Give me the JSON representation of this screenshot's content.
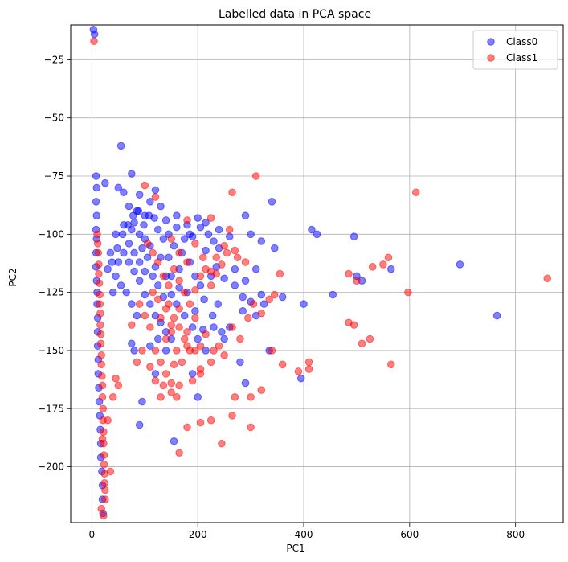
{
  "chart_data": {
    "type": "scatter",
    "title": "Labelled data in PCA space",
    "xlabel": "PC1",
    "ylabel": "PC2",
    "xlim": [
      -40,
      890
    ],
    "ylim": [
      -224,
      -10
    ],
    "xticks": [
      0,
      200,
      400,
      600,
      800
    ],
    "yticks": [
      -25,
      -50,
      -75,
      -100,
      -125,
      -150,
      -175,
      -200
    ],
    "grid": true,
    "legend": "top-right",
    "series": [
      {
        "name": "Class0",
        "color": "#0000ff",
        "alpha": 0.5,
        "points": [
          [
            3,
            -12
          ],
          [
            5,
            -14
          ],
          [
            8,
            -75
          ],
          [
            9,
            -80
          ],
          [
            8,
            -86
          ],
          [
            9,
            -92
          ],
          [
            8,
            -98
          ],
          [
            9,
            -102
          ],
          [
            8,
            -108
          ],
          [
            8,
            -114
          ],
          [
            9,
            -120
          ],
          [
            10,
            -125
          ],
          [
            10,
            -130
          ],
          [
            11,
            -136
          ],
          [
            11,
            -142
          ],
          [
            11,
            -148
          ],
          [
            12,
            -154
          ],
          [
            12,
            -160
          ],
          [
            13,
            -166
          ],
          [
            14,
            -172
          ],
          [
            15,
            -178
          ],
          [
            16,
            -184
          ],
          [
            17,
            -190
          ],
          [
            17,
            -196
          ],
          [
            19,
            -202
          ],
          [
            20,
            -208
          ],
          [
            20,
            -214
          ],
          [
            21,
            -220
          ],
          [
            55,
            -62
          ],
          [
            75,
            -74
          ],
          [
            50,
            -80
          ],
          [
            25,
            -78
          ],
          [
            60,
            -82
          ],
          [
            90,
            -83
          ],
          [
            120,
            -81
          ],
          [
            110,
            -86
          ],
          [
            130,
            -88
          ],
          [
            70,
            -88
          ],
          [
            85,
            -90
          ],
          [
            100,
            -92
          ],
          [
            140,
            -94
          ],
          [
            160,
            -97
          ],
          [
            180,
            -96
          ],
          [
            200,
            -93
          ],
          [
            215,
            -95
          ],
          [
            240,
            -98
          ],
          [
            260,
            -101
          ],
          [
            290,
            -92
          ],
          [
            340,
            -86
          ],
          [
            300,
            -100
          ],
          [
            320,
            -103
          ],
          [
            345,
            -106
          ],
          [
            415,
            -98
          ],
          [
            425,
            -100
          ],
          [
            495,
            -101
          ],
          [
            500,
            -118
          ],
          [
            510,
            -120
          ],
          [
            565,
            -115
          ],
          [
            455,
            -126
          ],
          [
            400,
            -130
          ],
          [
            360,
            -127
          ],
          [
            320,
            -126
          ],
          [
            300,
            -129
          ],
          [
            285,
            -133
          ],
          [
            260,
            -140
          ],
          [
            245,
            -142
          ],
          [
            230,
            -140
          ],
          [
            210,
            -141
          ],
          [
            195,
            -133
          ],
          [
            180,
            -125
          ],
          [
            165,
            -123
          ],
          [
            150,
            -126
          ],
          [
            140,
            -118
          ],
          [
            130,
            -110
          ],
          [
            120,
            -114
          ],
          [
            110,
            -105
          ],
          [
            100,
            -102
          ],
          [
            90,
            -100
          ],
          [
            80,
            -95
          ],
          [
            70,
            -104
          ],
          [
            60,
            -108
          ],
          [
            50,
            -112
          ],
          [
            45,
            -118
          ],
          [
            55,
            -122
          ],
          [
            65,
            -125
          ],
          [
            75,
            -130
          ],
          [
            85,
            -135
          ],
          [
            40,
            -125
          ],
          [
            30,
            -115
          ],
          [
            35,
            -108
          ],
          [
            45,
            -100
          ],
          [
            60,
            -96
          ],
          [
            75,
            -98
          ],
          [
            95,
            -106
          ],
          [
            105,
            -110
          ],
          [
            115,
            -118
          ],
          [
            125,
            -122
          ],
          [
            135,
            -127
          ],
          [
            145,
            -110
          ],
          [
            155,
            -105
          ],
          [
            170,
            -108
          ],
          [
            185,
            -112
          ],
          [
            195,
            -118
          ],
          [
            205,
            -122
          ],
          [
            225,
            -118
          ],
          [
            235,
            -114
          ],
          [
            250,
            -119
          ],
          [
            270,
            -122
          ],
          [
            290,
            -120
          ],
          [
            310,
            -115
          ],
          [
            215,
            -107
          ],
          [
            190,
            -101
          ],
          [
            175,
            -102
          ],
          [
            165,
            -115
          ],
          [
            150,
            -118
          ],
          [
            160,
            -130
          ],
          [
            175,
            -135
          ],
          [
            190,
            -140
          ],
          [
            200,
            -145
          ],
          [
            215,
            -150
          ],
          [
            190,
            -160
          ],
          [
            200,
            -170
          ],
          [
            155,
            -189
          ],
          [
            95,
            -172
          ],
          [
            90,
            -182
          ],
          [
            75,
            -147
          ],
          [
            80,
            -150
          ],
          [
            110,
            -148
          ],
          [
            125,
            -145
          ],
          [
            140,
            -150
          ],
          [
            120,
            -160
          ],
          [
            280,
            -155
          ],
          [
            290,
            -164
          ],
          [
            325,
            -130
          ],
          [
            285,
            -127
          ],
          [
            270,
            -115
          ],
          [
            240,
            -106
          ],
          [
            230,
            -103
          ],
          [
            220,
            -100
          ],
          [
            205,
            -97
          ],
          [
            185,
            -100
          ],
          [
            160,
            -92
          ],
          [
            145,
            -100
          ],
          [
            135,
            -102
          ],
          [
            125,
            -98
          ],
          [
            118,
            -93
          ],
          [
            108,
            -92
          ],
          [
            98,
            -96
          ],
          [
            88,
            -90
          ],
          [
            78,
            -92
          ],
          [
            68,
            -96
          ],
          [
            58,
            -100
          ],
          [
            48,
            -106
          ],
          [
            38,
            -112
          ],
          [
            70,
            -112
          ],
          [
            80,
            -116
          ],
          [
            90,
            -120
          ],
          [
            100,
            -126
          ],
          [
            110,
            -130
          ],
          [
            120,
            -135
          ],
          [
            130,
            -138
          ],
          [
            140,
            -142
          ],
          [
            150,
            -145
          ],
          [
            80,
            -108
          ],
          [
            90,
            -112
          ],
          [
            100,
            -116
          ],
          [
            765,
            -135
          ],
          [
            695,
            -113
          ],
          [
            395,
            -162
          ],
          [
            335,
            -150
          ],
          [
            310,
            -135
          ],
          [
            250,
            -145
          ],
          [
            238,
            -130
          ],
          [
            228,
            -135
          ],
          [
            212,
            -128
          ]
        ]
      },
      {
        "name": "Class1",
        "color": "#ff0000",
        "alpha": 0.5,
        "points": [
          [
            4,
            -17
          ],
          [
            10,
            -100
          ],
          [
            11,
            -104
          ],
          [
            12,
            -108
          ],
          [
            13,
            -113
          ],
          [
            13,
            -117
          ],
          [
            14,
            -121
          ],
          [
            15,
            -126
          ],
          [
            15,
            -130
          ],
          [
            16,
            -134
          ],
          [
            16,
            -139
          ],
          [
            17,
            -143
          ],
          [
            17,
            -147
          ],
          [
            18,
            -152
          ],
          [
            18,
            -156
          ],
          [
            19,
            -161
          ],
          [
            20,
            -165
          ],
          [
            20,
            -170
          ],
          [
            21,
            -175
          ],
          [
            21,
            -180
          ],
          [
            22,
            -185
          ],
          [
            22,
            -190
          ],
          [
            23,
            -195
          ],
          [
            23,
            -199
          ],
          [
            24,
            -203
          ],
          [
            24,
            -207
          ],
          [
            25,
            -210
          ],
          [
            25,
            -214
          ],
          [
            18,
            -218
          ],
          [
            22,
            -221
          ],
          [
            35,
            -202
          ],
          [
            40,
            -170
          ],
          [
            45,
            -162
          ],
          [
            50,
            -165
          ],
          [
            30,
            -180
          ],
          [
            20,
            -188
          ],
          [
            100,
            -79
          ],
          [
            120,
            -84
          ],
          [
            225,
            -93
          ],
          [
            265,
            -82
          ],
          [
            310,
            -75
          ],
          [
            612,
            -82
          ],
          [
            860,
            -119
          ],
          [
            597,
            -125
          ],
          [
            560,
            -110
          ],
          [
            550,
            -113
          ],
          [
            530,
            -114
          ],
          [
            500,
            -120
          ],
          [
            485,
            -117
          ],
          [
            485,
            -138
          ],
          [
            495,
            -139
          ],
          [
            510,
            -147
          ],
          [
            525,
            -145
          ],
          [
            565,
            -156
          ],
          [
            410,
            -155
          ],
          [
            410,
            -158
          ],
          [
            390,
            -159
          ],
          [
            360,
            -156
          ],
          [
            345,
            -126
          ],
          [
            340,
            -150
          ],
          [
            320,
            -167
          ],
          [
            300,
            -170
          ],
          [
            300,
            -183
          ],
          [
            270,
            -170
          ],
          [
            265,
            -178
          ],
          [
            245,
            -190
          ],
          [
            225,
            -180
          ],
          [
            205,
            -181
          ],
          [
            180,
            -183
          ],
          [
            165,
            -194
          ],
          [
            150,
            -168
          ],
          [
            135,
            -165
          ],
          [
            130,
            -170
          ],
          [
            120,
            -163
          ],
          [
            110,
            -157
          ],
          [
            95,
            -150
          ],
          [
            85,
            -155
          ],
          [
            75,
            -139
          ],
          [
            90,
            -130
          ],
          [
            100,
            -135
          ],
          [
            110,
            -140
          ],
          [
            125,
            -128
          ],
          [
            140,
            -132
          ],
          [
            155,
            -136
          ],
          [
            165,
            -140
          ],
          [
            175,
            -145
          ],
          [
            185,
            -150
          ],
          [
            195,
            -150
          ],
          [
            205,
            -148
          ],
          [
            215,
            -143
          ],
          [
            225,
            -155
          ],
          [
            240,
            -148
          ],
          [
            250,
            -152
          ],
          [
            265,
            -140
          ],
          [
            280,
            -145
          ],
          [
            295,
            -136
          ],
          [
            305,
            -130
          ],
          [
            320,
            -134
          ],
          [
            335,
            -128
          ],
          [
            355,
            -117
          ],
          [
            290,
            -112
          ],
          [
            275,
            -110
          ],
          [
            255,
            -108
          ],
          [
            245,
            -113
          ],
          [
            235,
            -117
          ],
          [
            225,
            -122
          ],
          [
            215,
            -115
          ],
          [
            205,
            -118
          ],
          [
            195,
            -124
          ],
          [
            185,
            -130
          ],
          [
            175,
            -125
          ],
          [
            165,
            -120
          ],
          [
            155,
            -115
          ],
          [
            145,
            -122
          ],
          [
            135,
            -118
          ],
          [
            125,
            -112
          ],
          [
            115,
            -108
          ],
          [
            105,
            -104
          ],
          [
            150,
            -102
          ],
          [
            165,
            -108
          ],
          [
            180,
            -112
          ],
          [
            195,
            -104
          ],
          [
            210,
            -110
          ],
          [
            225,
            -116
          ],
          [
            235,
            -110
          ],
          [
            250,
            -105
          ],
          [
            260,
            -98
          ],
          [
            270,
            -107
          ],
          [
            180,
            -94
          ],
          [
            120,
            -150
          ],
          [
            130,
            -155
          ],
          [
            140,
            -145
          ],
          [
            150,
            -139
          ],
          [
            160,
            -150
          ],
          [
            170,
            -155
          ],
          [
            180,
            -148
          ],
          [
            140,
            -160
          ],
          [
            150,
            -164
          ],
          [
            165,
            -165
          ],
          [
            190,
            -163
          ],
          [
            205,
            -158
          ],
          [
            230,
            -150
          ],
          [
            195,
            -136
          ],
          [
            180,
            -142
          ],
          [
            165,
            -132
          ],
          [
            150,
            -142
          ],
          [
            145,
            -130
          ],
          [
            130,
            -136
          ],
          [
            115,
            -125
          ],
          [
            155,
            -156
          ],
          [
            160,
            -170
          ],
          [
            205,
            -160
          ]
        ]
      }
    ]
  }
}
